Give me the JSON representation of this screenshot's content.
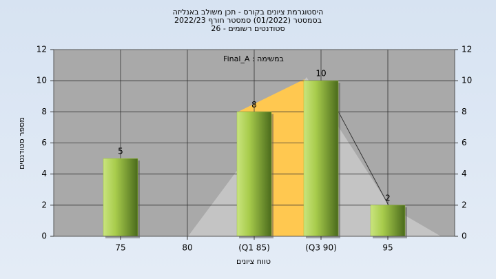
{
  "chart_data": {
    "type": "bar",
    "title": [
      "היסטוגרמת ציונים בקורס - תכן משולב באנליזה",
      "בסמסטר  (01/2022)  סמסטר חורף 2022/23",
      "סטודנטים רשומים - 26"
    ],
    "annotation": "במשימה : Final_A",
    "x_label": "טווח ציונים",
    "y_label": "מספר סטודנטים",
    "categories": [
      "75",
      "80",
      "(Q1 85)",
      "(Q3 90)",
      "95"
    ],
    "values": [
      5,
      0,
      8,
      10,
      2
    ],
    "color": "#9cc43c",
    "ylim": [
      0,
      12
    ],
    "yticks": [
      0,
      2,
      4,
      6,
      8,
      10,
      12
    ],
    "y2lim": [
      0,
      12
    ],
    "y2ticks": [
      0,
      2,
      4,
      6,
      8,
      10,
      12
    ],
    "grid": true
  }
}
